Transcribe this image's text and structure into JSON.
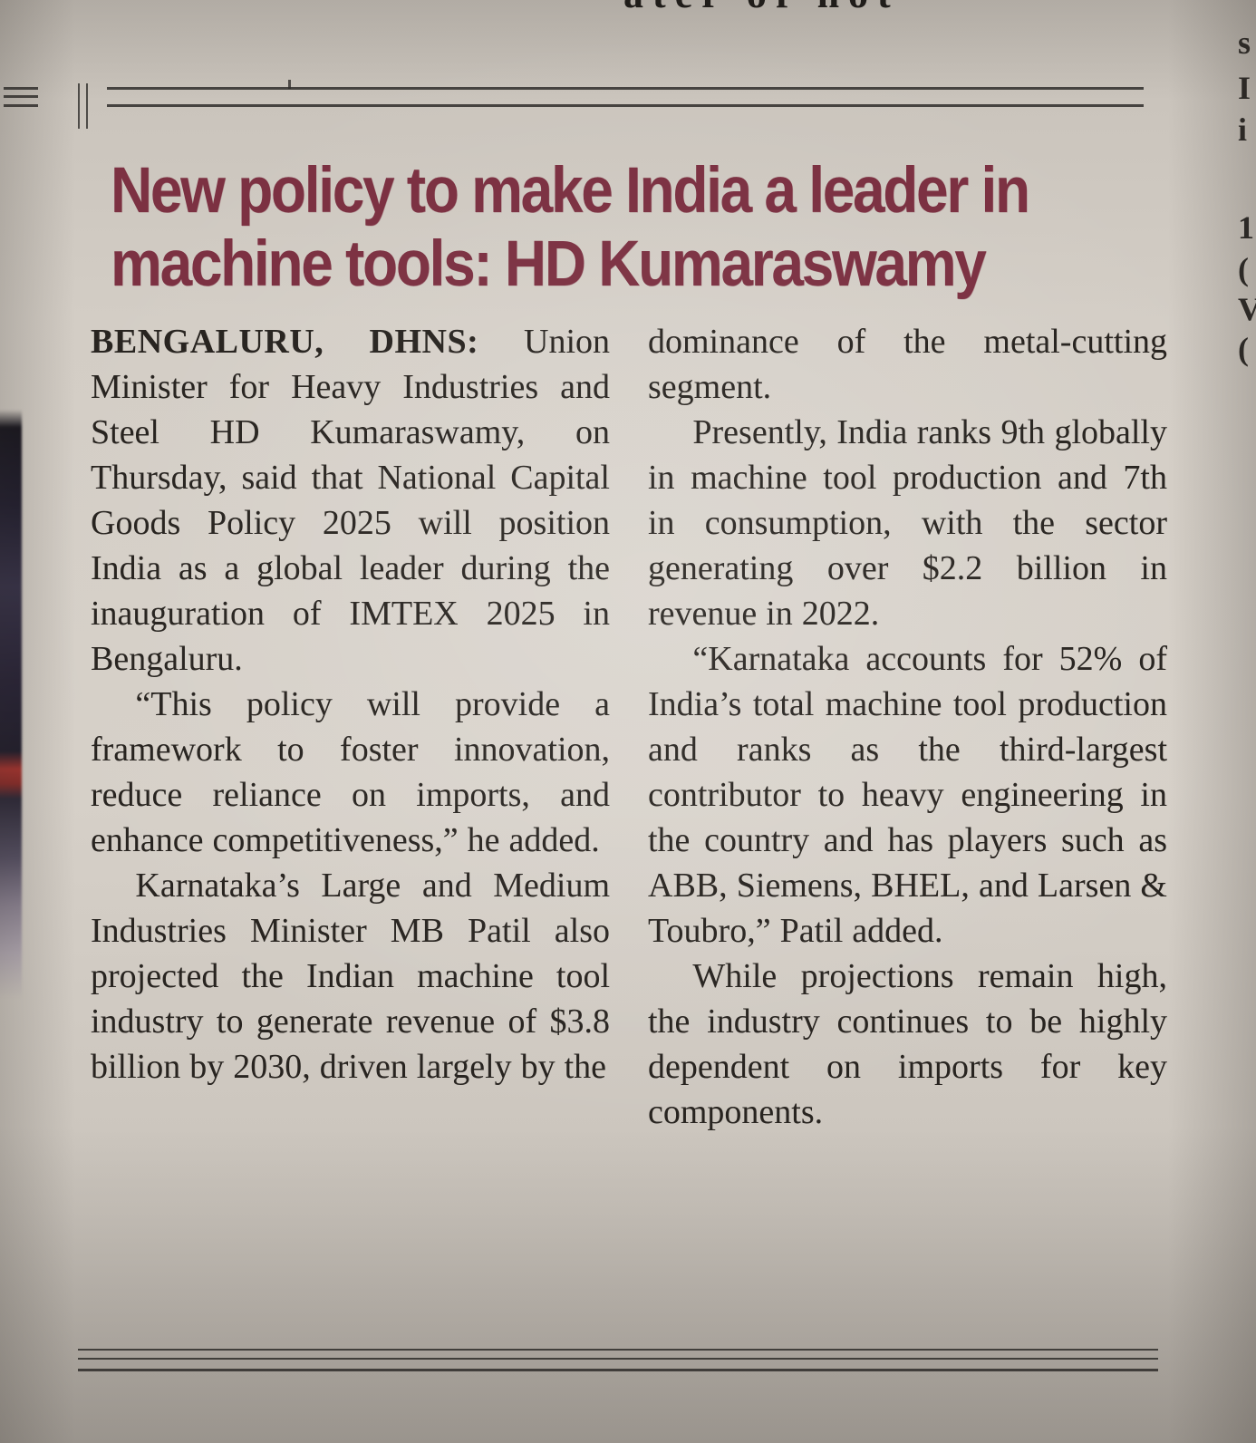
{
  "theme": {
    "paper": "#d1cbc3",
    "ink": "#282420",
    "headline": "#7c3142",
    "rule": "#2f2d2b"
  },
  "article": {
    "headline_lines": [
      "New policy to make India a leader in",
      "machine tools: HD Kumaraswamy"
    ],
    "dateline": "BENGALURU, DHNS:",
    "columns": [
      [
        "Union Minister for Heavy Industries and Steel HD Kumaraswamy, on Thursday, said that National Capital Goods Policy 2025 will position India as a global leader during the inauguration of IMTEX 2025 in Bengaluru.",
        "“This policy will provide a framework to foster innovation, reduce reliance on imports, and enhance competitiveness,” he added.",
        "Karnataka’s Large and Medium Industries Minister MB Patil also projected the Indian machine tool industry to generate revenue of $3.8 billion by 2030, driven largely by the"
      ],
      [
        "dominance of the metal-cutting segment.",
        "Presently, India ranks 9th globally in machine tool production and 7th in consumption, with the sector generating over $2.2 billion in revenue in 2022.",
        "“Karnataka accounts for 52% of India’s total machine tool production and ranks as the third-largest contributor to heavy engineering in the country and has players such as ABB, Siemens, BHEL, and Larsen & Toubro,” Patil added.",
        "While projections remain high, the industry continues to be highly dependent on imports for key components."
      ]
    ]
  },
  "artifacts": {
    "top_fragment": "ater of not",
    "right_fragments": [
      "s",
      "I",
      "i",
      "1",
      "(",
      "V",
      "("
    ]
  }
}
